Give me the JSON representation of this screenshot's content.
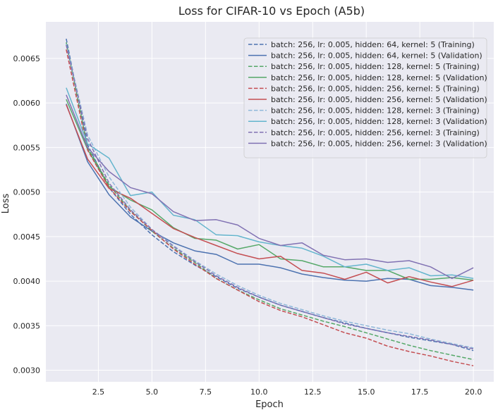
{
  "chart_data": {
    "type": "line",
    "title": "Loss for CIFAR-10 vs Epoch (A5b)",
    "xlabel": "Epoch",
    "ylabel": "Loss",
    "xlim": [
      0.05,
      20.95
    ],
    "ylim": [
      0.00287,
      0.00691
    ],
    "xticks": [
      2.5,
      5.0,
      7.5,
      10.0,
      12.5,
      15.0,
      17.5,
      20.0
    ],
    "xtick_labels": [
      "2.5",
      "5.0",
      "7.5",
      "10.0",
      "12.5",
      "15.0",
      "17.5",
      "20.0"
    ],
    "yticks": [
      0.003,
      0.0035,
      0.004,
      0.0045,
      0.005,
      0.0055,
      0.006,
      0.0065
    ],
    "ytick_labels": [
      "0.0030",
      "0.0035",
      "0.0040",
      "0.0045",
      "0.0050",
      "0.0055",
      "0.0060",
      "0.0065"
    ],
    "grid": true,
    "legend_position": "top-right",
    "x": [
      1,
      2,
      3,
      4,
      5,
      6,
      7,
      8,
      9,
      10,
      11,
      12,
      13,
      14,
      15,
      16,
      17,
      18,
      19,
      20
    ],
    "series": [
      {
        "name": "batch: 256, lr: 0.005, hidden: 64, kernel: 5 (Training)",
        "color": "#4c72b0",
        "dash": true,
        "values": [
          0.00672,
          0.00553,
          0.00505,
          0.00475,
          0.00452,
          0.00433,
          0.00418,
          0.00405,
          0.00392,
          0.00382,
          0.00373,
          0.00366,
          0.00359,
          0.00353,
          0.00347,
          0.00342,
          0.00337,
          0.00333,
          0.00329,
          0.00322
        ]
      },
      {
        "name": "batch: 256, lr: 0.005, hidden: 64, kernel: 5 (Validation)",
        "color": "#4c72b0",
        "dash": false,
        "values": [
          0.00599,
          0.00534,
          0.00497,
          0.00472,
          0.00456,
          0.00443,
          0.00434,
          0.0043,
          0.00419,
          0.00419,
          0.00415,
          0.00408,
          0.00404,
          0.00401,
          0.004,
          0.00403,
          0.00402,
          0.00395,
          0.00393,
          0.0039
        ]
      },
      {
        "name": "batch: 256, lr: 0.005, hidden: 128, kernel: 5 (Training)",
        "color": "#55a868",
        "dash": true,
        "values": [
          0.00668,
          0.0055,
          0.00508,
          0.00479,
          0.00456,
          0.00437,
          0.00421,
          0.00403,
          0.0039,
          0.00379,
          0.00369,
          0.00362,
          0.00355,
          0.00349,
          0.00342,
          0.00335,
          0.00328,
          0.00322,
          0.00317,
          0.00312
        ]
      },
      {
        "name": "batch: 256, lr: 0.005, hidden: 128, kernel: 5 (Validation)",
        "color": "#55a868",
        "dash": false,
        "values": [
          0.00604,
          0.00548,
          0.00506,
          0.00491,
          0.0048,
          0.0046,
          0.00448,
          0.00446,
          0.00436,
          0.00441,
          0.00425,
          0.00423,
          0.00416,
          0.00416,
          0.00412,
          0.00412,
          0.00402,
          0.00402,
          0.00404,
          0.00401
        ]
      },
      {
        "name": "batch: 256, lr: 0.005, hidden: 256, kernel: 5 (Training)",
        "color": "#c44e52",
        "dash": true,
        "values": [
          0.0066,
          0.00547,
          0.00505,
          0.00478,
          0.00457,
          0.00436,
          0.00419,
          0.00403,
          0.0039,
          0.00377,
          0.00367,
          0.0036,
          0.00351,
          0.00342,
          0.00336,
          0.00327,
          0.00321,
          0.00316,
          0.0031,
          0.00305
        ]
      },
      {
        "name": "batch: 256, lr: 0.005, hidden: 256, kernel: 5 (Validation)",
        "color": "#c44e52",
        "dash": false,
        "values": [
          0.00598,
          0.00537,
          0.00504,
          0.00493,
          0.00476,
          0.00459,
          0.00449,
          0.0044,
          0.00431,
          0.00425,
          0.00428,
          0.00412,
          0.00409,
          0.00402,
          0.0041,
          0.00398,
          0.00405,
          0.00399,
          0.00394,
          0.00401
        ]
      },
      {
        "name": "batch: 256, lr: 0.005, hidden: 128, kernel: 3 (Training)",
        "color": "#8fb8da",
        "dash": true,
        "values": [
          0.00666,
          0.00564,
          0.00517,
          0.00483,
          0.00458,
          0.0044,
          0.00423,
          0.00408,
          0.00395,
          0.00384,
          0.00375,
          0.00368,
          0.00361,
          0.00355,
          0.0035,
          0.00345,
          0.00341,
          0.00335,
          0.0033,
          0.00325
        ]
      },
      {
        "name": "batch: 256, lr: 0.005, hidden: 128, kernel: 3 (Validation)",
        "color": "#64b5cd",
        "dash": false,
        "values": [
          0.00617,
          0.00554,
          0.00538,
          0.00496,
          0.005,
          0.00474,
          0.00469,
          0.00452,
          0.00451,
          0.00444,
          0.0044,
          0.00437,
          0.00428,
          0.00416,
          0.00419,
          0.00412,
          0.00415,
          0.00406,
          0.00407,
          0.00403
        ]
      },
      {
        "name": "batch: 256, lr: 0.005, hidden: 256, kernel: 3 (Training)",
        "color": "#8172b3",
        "dash": true,
        "values": [
          0.00665,
          0.0056,
          0.0051,
          0.0048,
          0.00458,
          0.00439,
          0.00422,
          0.00406,
          0.00393,
          0.00382,
          0.00373,
          0.00366,
          0.00359,
          0.00352,
          0.00347,
          0.00342,
          0.00338,
          0.00334,
          0.00329,
          0.00324
        ]
      },
      {
        "name": "batch: 256, lr: 0.005, hidden: 256, kernel: 3 (Validation)",
        "color": "#8172b3",
        "dash": false,
        "values": [
          0.00609,
          0.0055,
          0.00523,
          0.00505,
          0.00498,
          0.00478,
          0.00468,
          0.00469,
          0.00463,
          0.00448,
          0.0044,
          0.00443,
          0.00429,
          0.00424,
          0.00425,
          0.00421,
          0.00423,
          0.00416,
          0.00403,
          0.00415
        ]
      }
    ]
  }
}
